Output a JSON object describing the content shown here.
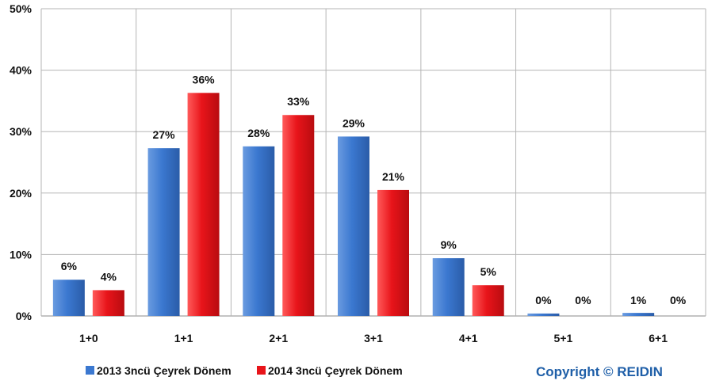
{
  "chart_data": {
    "type": "bar",
    "categories": [
      "1+0",
      "1+1",
      "2+1",
      "3+1",
      "4+1",
      "5+1",
      "6+1"
    ],
    "series": [
      {
        "name": "2013 3ncü Çeyrek Dönem",
        "color": "#3b78d0",
        "values": [
          5.9,
          27.3,
          27.6,
          29.2,
          9.4,
          0.4,
          0.5
        ],
        "labels": [
          "6%",
          "27%",
          "28%",
          "29%",
          "9%",
          "0%",
          "1%"
        ]
      },
      {
        "name": "2014 3ncü Çeyrek Dönem",
        "color": "#e8141a",
        "values": [
          4.2,
          36.3,
          32.7,
          20.5,
          5.0,
          0,
          0
        ],
        "labels": [
          "4%",
          "36%",
          "33%",
          "21%",
          "5%",
          "0%",
          "0%"
        ]
      }
    ],
    "ylim": [
      0,
      50
    ],
    "yticks": [
      "0%",
      "10%",
      "20%",
      "30%",
      "40%",
      "50%"
    ],
    "grid": true,
    "legend_position": "bottom"
  },
  "copyright": "Copyright © REIDIN",
  "colors": {
    "copyright": "#1f5fa8"
  }
}
